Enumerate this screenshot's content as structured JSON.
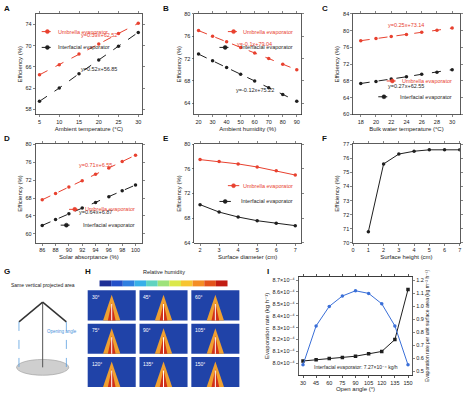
{
  "chart_data": [
    {
      "title": "A",
      "type": "line",
      "xlabel": "Ambient temperature (°C)",
      "ylabel": "Efficiency (%)",
      "x": [
        5,
        10,
        15,
        20,
        25,
        30
      ],
      "xlim": [
        4,
        31
      ],
      "xticks": [
        5,
        10,
        15,
        20,
        25,
        30
      ],
      "ylim": [
        57,
        76
      ],
      "yticks": [
        58,
        62,
        66,
        70,
        74
      ],
      "grid": false,
      "legend": "upper left",
      "series": [
        {
          "name": "Umbrella evaporator",
          "color": "#e8412f",
          "marker": "circle",
          "line_style": "dashed",
          "values": [
            64.5,
            66.4,
            68.4,
            70.3,
            72.3,
            74.2
          ],
          "annotation": "y=0.39x+62.52"
        },
        {
          "name": "Interfacial evaporator",
          "color": "#1f1f1f",
          "marker": "circle",
          "line_style": "dashed",
          "values": [
            59.5,
            62.0,
            64.7,
            67.3,
            69.9,
            72.5
          ],
          "annotation": "y=0.52x+56.85"
        }
      ]
    },
    {
      "title": "B",
      "type": "line",
      "xlabel": "Ambient humidity (%)",
      "ylabel": "Efficiency (%)",
      "x": [
        20,
        30,
        40,
        50,
        60,
        70,
        80,
        90
      ],
      "xlim": [
        17,
        93
      ],
      "xticks": [
        20,
        30,
        40,
        50,
        60,
        70,
        80,
        90
      ],
      "ylim": [
        62,
        80
      ],
      "yticks": [
        64,
        68,
        72,
        76,
        80
      ],
      "grid": false,
      "legend": "upper right",
      "series": [
        {
          "name": "Umbrella evaporator",
          "color": "#e8412f",
          "marker": "circle",
          "line_style": "dashed",
          "values": [
            77.0,
            76.0,
            75.0,
            74.0,
            73.0,
            72.0,
            71.0,
            70.0
          ],
          "annotation": "y=-0.1x+79.04"
        },
        {
          "name": "Interfacial evaporator",
          "color": "#1f1f1f",
          "marker": "circle",
          "line_style": "dashed",
          "values": [
            72.8,
            71.6,
            70.4,
            69.2,
            68.0,
            66.8,
            65.6,
            64.4
          ],
          "annotation": "y=-0.12x+75.22"
        }
      ]
    },
    {
      "title": "C",
      "type": "line",
      "xlabel": "Bulk water temperature (°C)",
      "ylabel": "Efficiency (%)",
      "x": [
        18,
        20,
        22,
        24,
        26,
        28,
        30
      ],
      "xlim": [
        17,
        31
      ],
      "xticks": [
        18,
        20,
        22,
        24,
        26,
        28,
        30
      ],
      "ylim": [
        60,
        84
      ],
      "yticks": [
        60,
        64,
        68,
        72,
        76,
        80,
        84
      ],
      "grid": false,
      "legend": "lower right",
      "series": [
        {
          "name": "Umbrella evaporator",
          "color": "#e8412f",
          "marker": "circle",
          "line_style": "dashed",
          "values": [
            77.6,
            78.1,
            78.6,
            79.1,
            79.6,
            80.1,
            80.6
          ],
          "annotation": "y=0.25x+73.14"
        },
        {
          "name": "Interfacial evaporator",
          "color": "#1f1f1f",
          "marker": "circle",
          "line_style": "dashed",
          "values": [
            67.4,
            67.9,
            68.5,
            69.0,
            69.6,
            70.1,
            70.7
          ],
          "annotation": "y=0.27x+62.55"
        }
      ]
    },
    {
      "title": "D",
      "type": "line",
      "xlabel": "Solar absorptance (%)",
      "ylabel": "Efficiency (%)",
      "x": [
        86,
        88,
        90,
        92,
        94,
        96,
        98,
        100
      ],
      "xlim": [
        85,
        101
      ],
      "xticks": [
        86,
        88,
        90,
        92,
        94,
        96,
        98,
        100
      ],
      "ylim": [
        58,
        80
      ],
      "yticks": [
        60,
        64,
        68,
        72,
        76,
        80
      ],
      "grid": false,
      "legend": "lower right",
      "series": [
        {
          "name": "Umbrella evaporator",
          "color": "#e8412f",
          "marker": "circle",
          "line_style": "dashed",
          "values": [
            67.61,
            69.03,
            70.45,
            71.87,
            73.29,
            74.71,
            76.13,
            77.55
          ],
          "annotation": "y=0.71x+6.55"
        },
        {
          "name": "Interfacial evaporator",
          "color": "#1f1f1f",
          "marker": "circle",
          "line_style": "dashed",
          "values": [
            61.9,
            63.2,
            64.5,
            65.8,
            67.0,
            68.3,
            69.6,
            70.9
          ],
          "annotation": "y=0.64x+6.87"
        }
      ]
    },
    {
      "title": "E",
      "type": "line",
      "xlabel": "Surface diameter (cm)",
      "ylabel": "Efficiency (%)",
      "x": [
        2,
        3,
        4,
        5,
        6,
        7
      ],
      "xlim": [
        1.7,
        7.3
      ],
      "xticks": [
        2,
        3,
        4,
        5,
        6,
        7
      ],
      "ylim": [
        64,
        80
      ],
      "yticks": [
        64,
        68,
        72,
        76,
        80
      ],
      "grid": false,
      "legend": "center right",
      "series": [
        {
          "name": "Umbrella evaporator",
          "color": "#e8412f",
          "marker": "circle",
          "line_style": "solid",
          "values": [
            77.5,
            77.2,
            76.8,
            76.3,
            75.7,
            75.0
          ]
        },
        {
          "name": "Interfacial evaporator",
          "color": "#1f1f1f",
          "marker": "circle",
          "line_style": "solid",
          "values": [
            70.2,
            69.0,
            68.2,
            67.6,
            67.2,
            66.8
          ]
        }
      ]
    },
    {
      "title": "F",
      "type": "line",
      "xlabel": "Surface height (cm)",
      "ylabel": "Efficiency (%)",
      "x": [
        1,
        2,
        3,
        4,
        5,
        6,
        7
      ],
      "xlim": [
        0,
        7
      ],
      "xticks": [
        0,
        1,
        2,
        3,
        4,
        5,
        6,
        7
      ],
      "ylim": [
        70,
        77
      ],
      "yticks": [
        70,
        71,
        72,
        73,
        74,
        75,
        76,
        77
      ],
      "grid": false,
      "series": [
        {
          "color": "#1f1f1f",
          "marker": "circle",
          "line_style": "solid",
          "values": [
            70.8,
            75.6,
            76.3,
            76.5,
            76.6,
            76.6,
            76.6
          ]
        }
      ]
    },
    {
      "title": "I",
      "type": "line",
      "xlabel": "Open angle (°)",
      "ylabel": "Evaporation rate (kg h⁻¹)",
      "y2label": "Evaporation rate per unit surface area (kg m⁻² h⁻¹)",
      "x": [
        30,
        45,
        60,
        75,
        90,
        105,
        120,
        135,
        150
      ],
      "xlim": [
        25,
        155
      ],
      "xticks": [
        30,
        45,
        60,
        75,
        90,
        105,
        120,
        135,
        150
      ],
      "ylim": [
        0.00079,
        0.000873
      ],
      "yticks": [
        {
          "value": 0.0008,
          "label": "8.0×10⁻⁴"
        },
        {
          "value": 0.00081,
          "label": "8.1×10⁻⁴"
        },
        {
          "value": 0.00082,
          "label": "8.2×10⁻⁴"
        },
        {
          "value": 0.00083,
          "label": "8.3×10⁻⁴"
        },
        {
          "value": 0.00084,
          "label": "8.4×10⁻⁴"
        },
        {
          "value": 0.00085,
          "label": "8.5×10⁻⁴"
        },
        {
          "value": 0.00086,
          "label": "8.6×10⁻⁴"
        },
        {
          "value": 0.00087,
          "label": "8.7×10⁻⁴"
        }
      ],
      "y2lim": [
        0.47,
        1.23
      ],
      "y2ticks": [
        0.5,
        0.6,
        0.7,
        0.8,
        0.9,
        {
          "value": 1,
          "label": "1.0"
        },
        1.1,
        1.2
      ],
      "grid": false,
      "annotations": [
        "Interfacial evaporator: 7.27×10⁻⁴ kg/h"
      ],
      "series": [
        {
          "color": "#1f1f1f",
          "marker": "square",
          "line_style": "solid",
          "values": [
            0.000802,
            0.000803,
            0.000804,
            0.000805,
            0.000806,
            0.000808,
            0.00081,
            0.00082,
            0.000862
          ]
        },
        {
          "color": "#3a6fd8",
          "marker": "circle",
          "line_style": "solid",
          "axis": "y2",
          "values": [
            0.55,
            0.85,
            1.0,
            1.08,
            1.12,
            1.1,
            1.02,
            0.85,
            0.55
          ]
        }
      ]
    }
  ],
  "diagrams": [
    {
      "title": "G",
      "caption": "Same vertical projected area",
      "angle_label": "Opening angle"
    },
    {
      "title": "H",
      "colorbar_label": "Relative humidity",
      "tile_labels": [
        "30°",
        "45°",
        "60°",
        "75°",
        "90°",
        "105°",
        "120°",
        "135°",
        "150°"
      ]
    }
  ]
}
